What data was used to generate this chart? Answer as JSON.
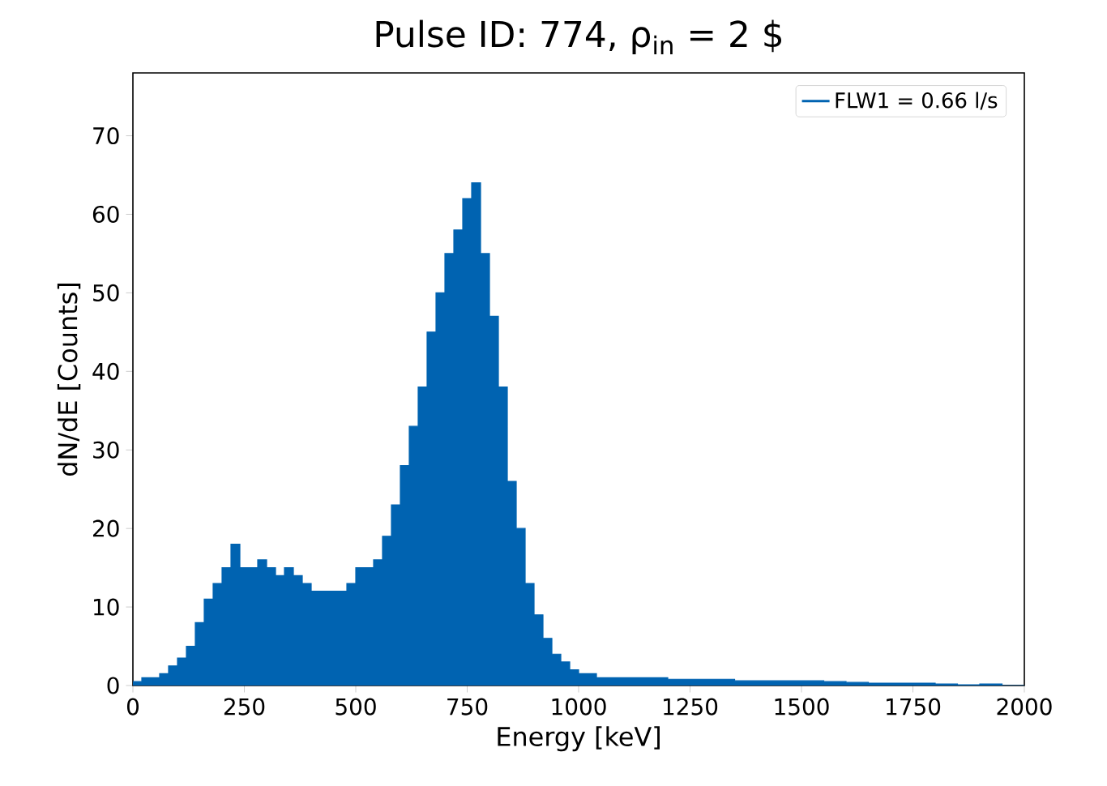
{
  "chart_data": {
    "type": "histogram",
    "title": "Pulse ID: 774, ρ$_{in}$ = 2 $",
    "xlabel": "Energy [keV]",
    "ylabel": "dN/dE [Counts]",
    "bins": [
      0,
      20,
      40,
      60,
      80,
      100,
      120,
      140,
      160,
      180,
      200,
      220,
      240,
      260,
      280,
      300,
      320,
      340,
      360,
      380,
      400,
      420,
      440,
      460,
      480,
      500,
      520,
      540,
      560,
      580,
      600,
      620,
      640,
      660,
      680,
      700,
      720,
      740,
      760,
      780,
      800,
      820,
      840,
      860,
      880,
      900,
      920,
      940,
      960,
      980,
      1000,
      1020,
      1040,
      1060,
      1080,
      1100,
      1150,
      1200,
      1250,
      1300,
      1350,
      1400,
      1450,
      1500,
      1550,
      1600,
      1650,
      1700,
      1750,
      1800,
      1850,
      1900,
      1950,
      2000
    ],
    "series": [
      {
        "name": "FLW1 = 0.66 l/s",
        "color": "#0063b1",
        "values": [
          0.5,
          1,
          1,
          1.5,
          2.5,
          3.5,
          5,
          8,
          11,
          13,
          15,
          18,
          15,
          15,
          16,
          15,
          14,
          15,
          14,
          13,
          12,
          12,
          12,
          12,
          13,
          15,
          15,
          16,
          19,
          23,
          28,
          33,
          38,
          45,
          50,
          55,
          58,
          62,
          64,
          55,
          47,
          38,
          26,
          20,
          13,
          9,
          6,
          4,
          3,
          2,
          1.5,
          1.5,
          1,
          1,
          1,
          1,
          1,
          0.8,
          0.8,
          0.8,
          0.6,
          0.6,
          0.6,
          0.6,
          0.5,
          0.4,
          0.3,
          0.3,
          0.3,
          0.2,
          0.1,
          0.2,
          0
        ]
      }
    ],
    "xlim": [
      0,
      2000
    ],
    "xticks": [
      0,
      250,
      500,
      750,
      1000,
      1250,
      1500,
      1750,
      2000
    ],
    "ylim": [
      0,
      78
    ],
    "yticks": [
      0,
      10,
      20,
      30,
      40,
      50,
      60,
      70
    ],
    "legend": "top right"
  }
}
